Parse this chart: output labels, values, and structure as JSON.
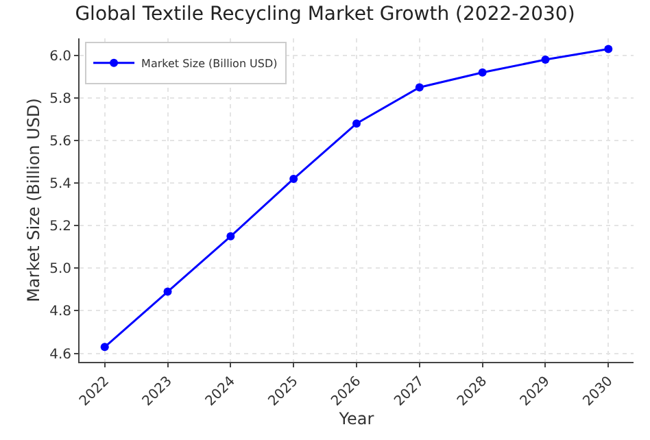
{
  "chart_data": {
    "type": "line",
    "title": "Global Textile Recycling Market Growth (2022-2030)",
    "xlabel": "Year",
    "ylabel": "Market Size (Billion USD)",
    "x": [
      2022,
      2023,
      2024,
      2025,
      2026,
      2027,
      2028,
      2029,
      2030
    ],
    "series": [
      {
        "name": "Market Size (Billion USD)",
        "color": "#0000ff",
        "values": [
          4.63,
          4.89,
          5.15,
          5.42,
          5.68,
          5.85,
          5.92,
          5.98,
          6.03
        ]
      }
    ],
    "xlim": [
      2021.6,
      2030.4
    ],
    "xticks": [
      2022,
      2023,
      2024,
      2025,
      2026,
      2027,
      2028,
      2029,
      2030
    ],
    "ylim": [
      4.56,
      6.08
    ],
    "yticks": [
      4.6,
      4.8,
      {
        "value": 5,
        "label": "5.0"
      },
      5.2,
      5.4,
      5.6,
      5.8,
      {
        "value": 6,
        "label": "6.0"
      }
    ],
    "grid": true,
    "legend": "top left",
    "marker": "circle",
    "line_style": "solid"
  }
}
